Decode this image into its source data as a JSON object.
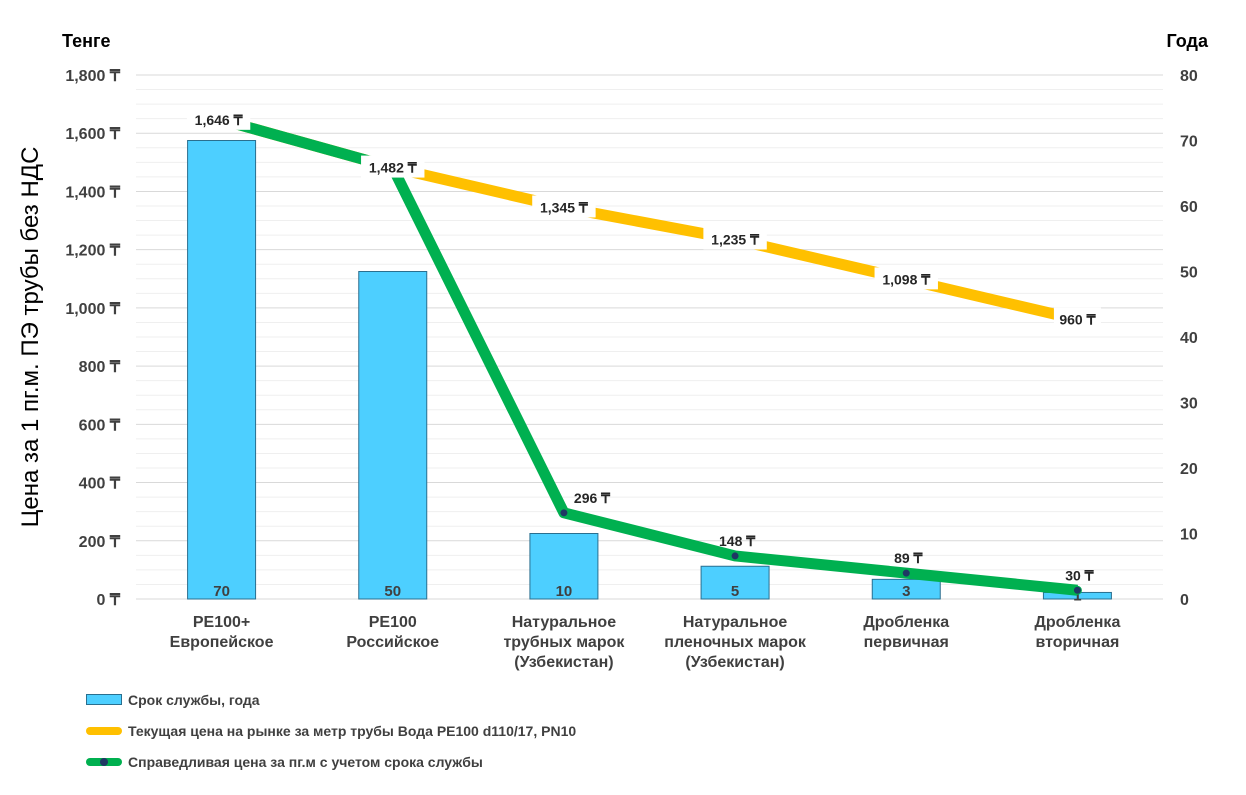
{
  "chart_data": {
    "type": "bar",
    "title": "",
    "ylabel": "Цена за 1 пг.м. ПЭ трубы без НДС",
    "y_unit_left": "Тенге",
    "y_unit_right": "Года",
    "ylim_left": [
      0,
      1800
    ],
    "yticks_left": [
      "0 ₸",
      "200 ₸",
      "400 ₸",
      "600 ₸",
      "800 ₸",
      "1,000 ₸",
      "1,200 ₸",
      "1,400 ₸",
      "1,600 ₸",
      "1,800 ₸"
    ],
    "ylim_right": [
      0,
      80
    ],
    "yticks_right": [
      "0",
      "10",
      "20",
      "30",
      "40",
      "50",
      "60",
      "70",
      "80"
    ],
    "grid": true,
    "legend_position": "bottom-left",
    "categories": [
      [
        "PE100+",
        "Европейское"
      ],
      [
        "PE100",
        "Российское"
      ],
      [
        "Натуральное",
        "трубных марок",
        "(Узбекистан)"
      ],
      [
        "Натуральное",
        "пленочных марок",
        "(Узбекистан)"
      ],
      [
        "Дробленка",
        "первичная"
      ],
      [
        "Дробленка",
        "вторичная"
      ]
    ],
    "series": [
      {
        "name": "Срок службы, года",
        "type": "bar",
        "axis": "right",
        "color": "#4dcfff",
        "values": [
          70,
          50,
          10,
          5,
          3,
          1
        ],
        "labels": [
          "70",
          "50",
          "10",
          "5",
          "3",
          "1"
        ]
      },
      {
        "name": "Текущая цена на рынке за метр трубы Вода PE100 d110/17, PN10",
        "type": "line",
        "axis": "left",
        "color": "#ffc000",
        "values": [
          1646,
          1482,
          1345,
          1235,
          1098,
          960
        ],
        "labels": [
          "1,646 ₸",
          "1,482 ₸",
          "1,345 ₸",
          "1,235 ₸",
          "1,098 ₸",
          "960 ₸"
        ]
      },
      {
        "name": "Справедливая цена за пг.м с учетом срока службы",
        "type": "line",
        "axis": "left",
        "color": "#00b050",
        "marker_color": "#1f3864",
        "values": [
          1646,
          1482,
          296,
          148,
          89,
          30
        ],
        "labels": [
          "",
          "",
          "296 ₸",
          "148 ₸",
          "89 ₸",
          "30 ₸"
        ]
      }
    ]
  }
}
